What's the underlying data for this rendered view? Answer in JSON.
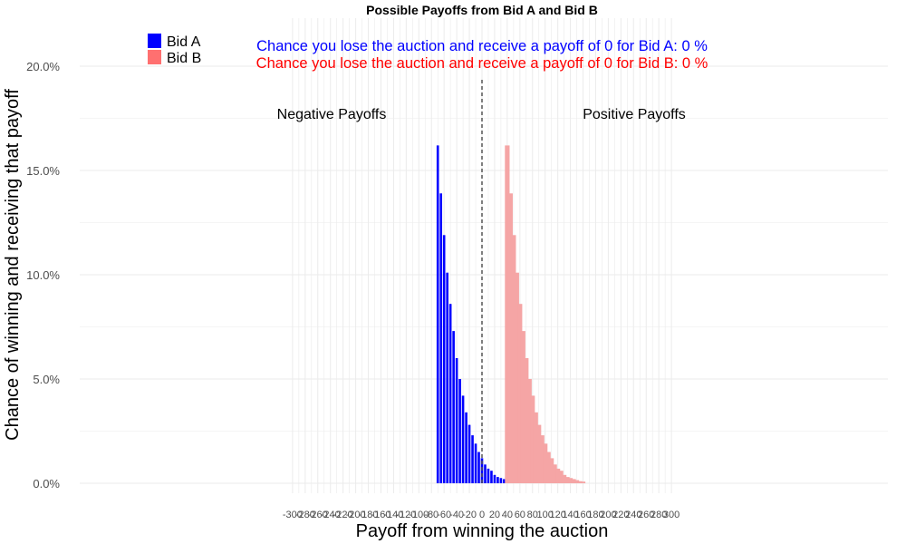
{
  "chart_data": {
    "type": "bar",
    "title": "Possible Payoffs from Bid A and Bid B",
    "xlabel": "Payoff from winning the auction",
    "ylabel": "Chance of winning and receiving that payoff",
    "xlim": [
      -310,
      310
    ],
    "ylim": [
      0,
      0.22
    ],
    "x_ticks": [
      -300,
      -280,
      -260,
      -240,
      -220,
      -200,
      -180,
      -160,
      -140,
      -120,
      -100,
      -80,
      -60,
      -40,
      -20,
      0,
      20,
      40,
      60,
      80,
      100,
      120,
      140,
      160,
      180,
      200,
      220,
      240,
      260,
      280,
      300
    ],
    "y_ticks": [
      0,
      0.05,
      0.1,
      0.15,
      0.2
    ],
    "y_tick_labels": [
      "0.0%",
      "5.0%",
      "10.0%",
      "15.0%",
      "20.0%"
    ],
    "grid": true,
    "legend_position": "top-left",
    "zero_line": "dashed",
    "region_labels": {
      "negative": "Negative Payoffs",
      "positive": "Positive Payoffs"
    },
    "annotations": {
      "bid_a": "Chance you lose the auction and receive a payoff of 0 for Bid A:  0 %",
      "bid_b": "Chance you lose the auction and receive a payoff of 0 for Bid B:  0 %"
    },
    "series": [
      {
        "name": "Bid A",
        "color": "#0000ff",
        "x": [
          -70,
          -65,
          -60,
          -55,
          -50,
          -45,
          -40,
          -35,
          -30,
          -25,
          -20,
          -15,
          -10,
          -5,
          0,
          5,
          10,
          15,
          20,
          25,
          30,
          35,
          40,
          45,
          50
        ],
        "values": [
          0.162,
          0.139,
          0.119,
          0.101,
          0.086,
          0.073,
          0.06,
          0.05,
          0.042,
          0.034,
          0.028,
          0.023,
          0.019,
          0.015,
          0.012,
          0.009,
          0.007,
          0.006,
          0.004,
          0.003,
          0.0025,
          0.002,
          0.0015,
          0.001,
          0.0008
        ]
      },
      {
        "name": "Bid B",
        "color": "#f5a5a5",
        "legend_color": "#ff7070",
        "x": [
          40,
          45,
          50,
          55,
          60,
          65,
          70,
          75,
          80,
          85,
          90,
          95,
          100,
          105,
          110,
          115,
          120,
          125,
          130,
          135,
          140,
          145,
          150,
          155,
          160
        ],
        "values": [
          0.162,
          0.139,
          0.119,
          0.101,
          0.086,
          0.073,
          0.06,
          0.05,
          0.042,
          0.034,
          0.028,
          0.023,
          0.019,
          0.015,
          0.012,
          0.009,
          0.007,
          0.006,
          0.004,
          0.003,
          0.0025,
          0.002,
          0.0015,
          0.001,
          0.0008
        ]
      }
    ]
  }
}
